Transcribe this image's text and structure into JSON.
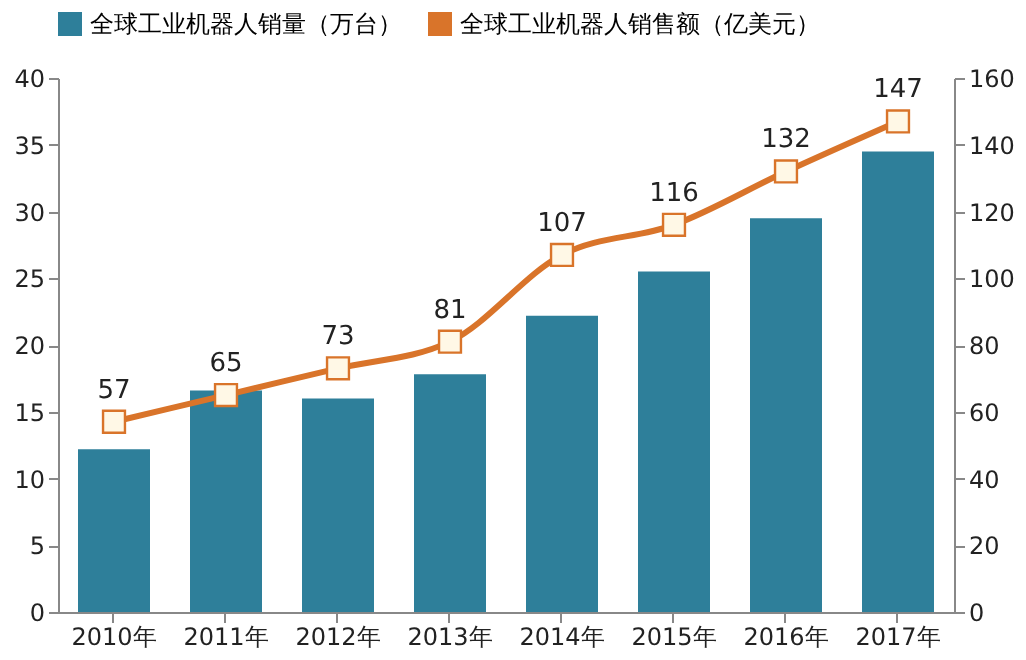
{
  "chart_data": {
    "type": "bar",
    "categories": [
      "2010年",
      "2011年",
      "2012年",
      "2013年",
      "2014年",
      "2015年",
      "2016年",
      "2017年"
    ],
    "series": [
      {
        "name": "全球工业机器人销量（万台）",
        "color": "#2e7f9a",
        "values": [
          12.2,
          16.6,
          16.0,
          17.8,
          22.2,
          25.5,
          29.5,
          34.5
        ]
      },
      {
        "name": "全球工业机器人销售额（亿美元）",
        "type": "line",
        "axis": "y2",
        "color": "#d9742a",
        "marker": "square",
        "values": [
          57,
          65,
          73,
          81,
          107,
          116,
          132,
          147
        ],
        "value_labels": [
          "57",
          "65",
          "73",
          "81",
          "107",
          "116",
          "132",
          "147"
        ]
      }
    ],
    "ylim": [
      0,
      40
    ],
    "yticks": [
      0,
      5,
      10,
      15,
      20,
      25,
      30,
      35,
      40
    ],
    "y2lim": [
      0,
      160
    ],
    "y2ticks": [
      0,
      20,
      40,
      60,
      80,
      100,
      120,
      140,
      160
    ],
    "grid": false,
    "legend": "top"
  }
}
